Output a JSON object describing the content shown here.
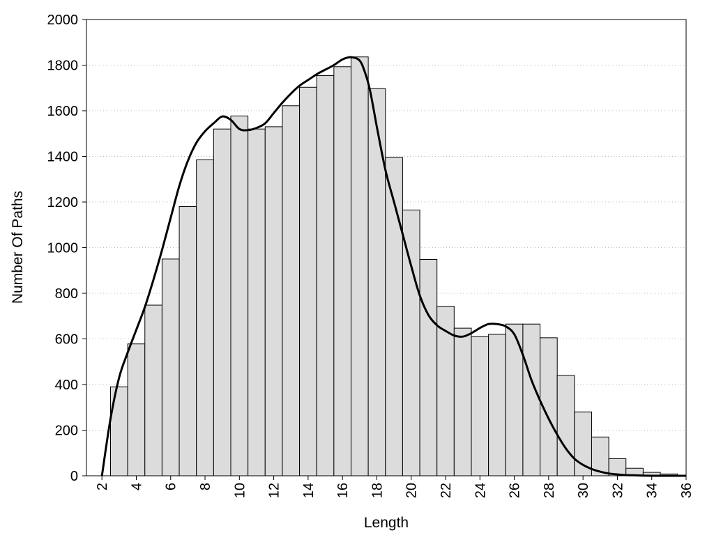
{
  "chart_data": {
    "type": "bar",
    "xlabel": "Length",
    "ylabel": "Number Of Paths",
    "xlim": [
      1.1,
      36
    ],
    "ylim": [
      0,
      2000
    ],
    "grid": "horizontal-dotted",
    "x_ticks": [
      "2",
      "4",
      "6",
      "8",
      "10",
      "12",
      "14",
      "16",
      "18",
      "20",
      "22",
      "24",
      "26",
      "28",
      "30",
      "32",
      "34",
      "36"
    ],
    "y_ticks": [
      "0",
      "200",
      "400",
      "600",
      "800",
      "1000",
      "1200",
      "1400",
      "1600",
      "1800",
      "2000"
    ],
    "bars": {
      "x": [
        3,
        4,
        5,
        6,
        7,
        8,
        9,
        10,
        11,
        12,
        13,
        14,
        15,
        16,
        17,
        18,
        19,
        20,
        21,
        22,
        23,
        24,
        25,
        26,
        27,
        28,
        29,
        30,
        31,
        32,
        33,
        34,
        35
      ],
      "values": [
        390,
        578,
        748,
        950,
        1180,
        1385,
        1520,
        1577,
        1520,
        1530,
        1622,
        1703,
        1754,
        1793,
        1836,
        1697,
        1395,
        1165,
        948,
        743,
        647,
        610,
        620,
        665,
        665,
        605,
        440,
        280,
        170,
        75,
        33,
        15,
        8
      ]
    },
    "curve": {
      "x": [
        2.0,
        2.5,
        3.0,
        3.5,
        4.0,
        4.5,
        5.0,
        5.5,
        6.0,
        6.5,
        7.0,
        7.5,
        8.0,
        8.5,
        9.0,
        9.5,
        10.0,
        10.5,
        11.0,
        11.5,
        12.0,
        12.5,
        13.0,
        13.5,
        14.0,
        14.5,
        15.0,
        15.5,
        16.0,
        16.5,
        17.0,
        17.3,
        17.6,
        18.0,
        18.5,
        19.0,
        19.5,
        20.0,
        20.5,
        21.0,
        21.5,
        22.0,
        22.5,
        23.0,
        23.5,
        24.0,
        24.5,
        25.0,
        25.5,
        26.0,
        26.5,
        27.0,
        27.5,
        28.0,
        28.5,
        29.0,
        29.5,
        30.0,
        30.5,
        31.0,
        31.5,
        32.0,
        32.5,
        33.0,
        33.5,
        34.0,
        34.5,
        35.0,
        35.5,
        36.0
      ],
      "y": [
        0,
        250,
        430,
        540,
        640,
        740,
        860,
        990,
        1130,
        1270,
        1380,
        1460,
        1510,
        1545,
        1575,
        1560,
        1520,
        1515,
        1525,
        1545,
        1590,
        1635,
        1675,
        1710,
        1735,
        1760,
        1780,
        1800,
        1825,
        1835,
        1820,
        1770,
        1690,
        1530,
        1340,
        1200,
        1060,
        920,
        790,
        705,
        660,
        635,
        615,
        610,
        625,
        648,
        665,
        665,
        655,
        620,
        530,
        420,
        330,
        250,
        180,
        120,
        75,
        48,
        30,
        18,
        10,
        6,
        3,
        2,
        1,
        0,
        0,
        0,
        0,
        0
      ]
    }
  }
}
